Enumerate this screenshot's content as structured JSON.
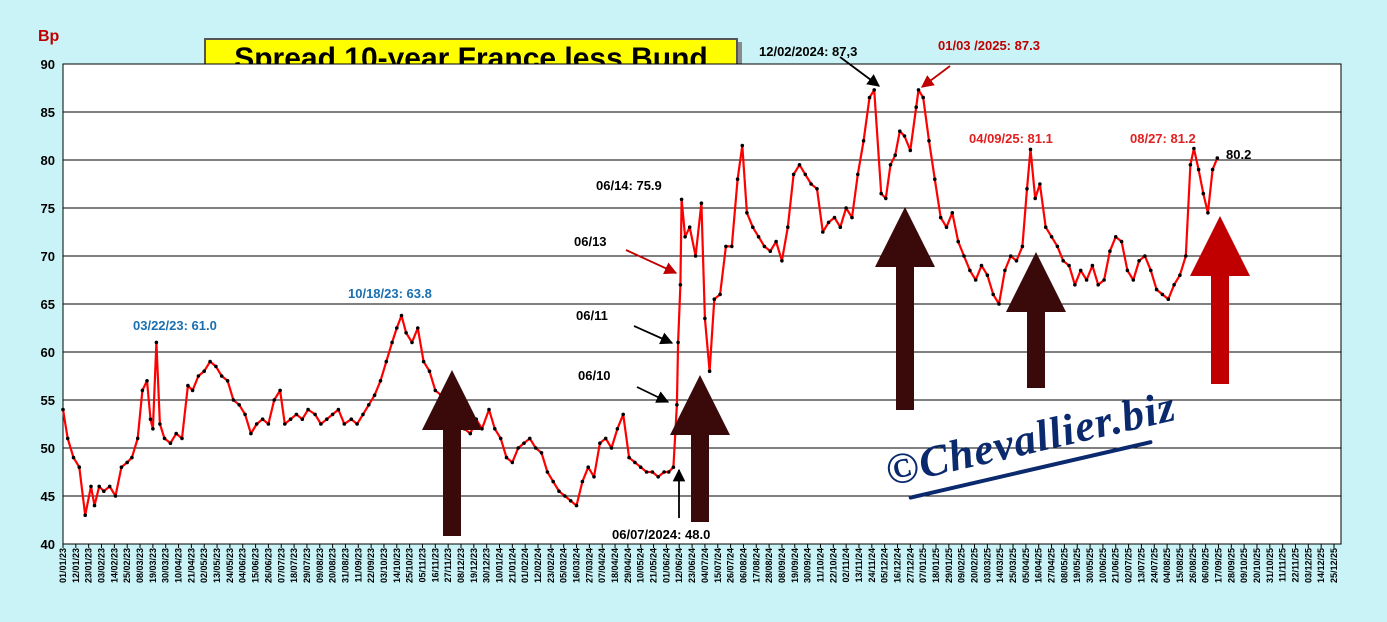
{
  "chart_data": {
    "type": "line",
    "title": "Spread 10-year France less Bund",
    "ylabel": "Bp",
    "ylim": [
      40,
      90
    ],
    "yticks": [
      40,
      45,
      50,
      55,
      60,
      65,
      70,
      75,
      80,
      85,
      90
    ],
    "xlim": [
      "2023-01-01",
      "2025-12-31"
    ],
    "grid": "horizontal",
    "line_color": "#ff0000",
    "marker_color": "#000000",
    "xticks": [
      "01/01/23",
      "12/01/23",
      "23/01/23",
      "03/02/23",
      "14/02/23",
      "25/02/23",
      "08/03/23",
      "19/03/23",
      "30/03/23",
      "10/04/23",
      "21/04/23",
      "02/05/23",
      "13/05/23",
      "24/05/23",
      "04/06/23",
      "15/06/23",
      "26/06/23",
      "07/07/23",
      "18/07/23",
      "29/07/23",
      "09/08/23",
      "20/08/23",
      "31/08/23",
      "11/09/23",
      "22/09/23",
      "03/10/23",
      "14/10/23",
      "25/10/23",
      "05/11/23",
      "16/11/23",
      "27/11/23",
      "08/12/23",
      "19/12/23",
      "30/12/23",
      "10/01/24",
      "21/01/24",
      "01/02/24",
      "12/02/24",
      "23/02/24",
      "05/03/24",
      "16/03/24",
      "27/03/24",
      "07/04/24",
      "18/04/24",
      "29/04/24",
      "10/05/24",
      "21/05/24",
      "01/06/24",
      "12/06/24",
      "23/06/24",
      "04/07/24",
      "15/07/24",
      "26/07/24",
      "06/08/24",
      "17/08/24",
      "28/08/24",
      "08/09/24",
      "19/09/24",
      "30/09/24",
      "11/10/24",
      "22/10/24",
      "02/11/24",
      "13/11/24",
      "24/11/24",
      "05/12/24",
      "16/12/24",
      "27/12/24",
      "07/01/25",
      "18/01/25",
      "29/01/25",
      "09/02/25",
      "20/02/25",
      "03/03/25",
      "14/03/25",
      "25/03/25",
      "05/04/25",
      "16/04/25",
      "27/04/25",
      "08/05/25",
      "19/05/25",
      "30/05/25",
      "10/06/25",
      "21/06/25",
      "02/07/25",
      "13/07/25",
      "24/07/25",
      "04/08/25",
      "15/08/25",
      "26/08/25",
      "06/09/25",
      "17/09/25",
      "28/09/25",
      "09/10/25",
      "20/10/25",
      "31/10/25",
      "11/11/25",
      "22/11/25",
      "03/12/25",
      "14/12/25",
      "25/12/25"
    ],
    "series": [
      {
        "x": [
          "2023-01-01",
          "2023-01-05",
          "2023-01-10",
          "2023-01-15",
          "2023-01-20",
          "2023-01-25",
          "2023-01-28",
          "2023-02-01",
          "2023-02-05",
          "2023-02-10",
          "2023-02-15",
          "2023-02-20",
          "2023-02-25",
          "2023-03-01",
          "2023-03-06",
          "2023-03-10",
          "2023-03-14",
          "2023-03-17",
          "2023-03-19",
          "2023-03-22",
          "2023-03-25",
          "2023-03-29",
          "2023-04-03",
          "2023-04-08",
          "2023-04-13",
          "2023-04-18",
          "2023-04-22",
          "2023-04-27",
          "2023-05-02",
          "2023-05-07",
          "2023-05-12",
          "2023-05-17",
          "2023-05-22",
          "2023-05-27",
          "2023-06-01",
          "2023-06-06",
          "2023-06-11",
          "2023-06-16",
          "2023-06-21",
          "2023-06-26",
          "2023-07-01",
          "2023-07-06",
          "2023-07-10",
          "2023-07-15",
          "2023-07-20",
          "2023-07-25",
          "2023-07-30",
          "2023-08-05",
          "2023-08-10",
          "2023-08-15",
          "2023-08-20",
          "2023-08-25",
          "2023-08-30",
          "2023-09-05",
          "2023-09-10",
          "2023-09-15",
          "2023-09-20",
          "2023-09-25",
          "2023-09-30",
          "2023-10-05",
          "2023-10-10",
          "2023-10-14",
          "2023-10-18",
          "2023-10-22",
          "2023-10-27",
          "2023-11-01",
          "2023-11-06",
          "2023-11-11",
          "2023-11-16",
          "2023-11-21",
          "2023-11-26",
          "2023-12-01",
          "2023-12-06",
          "2023-12-11",
          "2023-12-16",
          "2023-12-21",
          "2023-12-26",
          "2024-01-01",
          "2024-01-06",
          "2024-01-11",
          "2024-01-16",
          "2024-01-21",
          "2024-01-26",
          "2024-01-31",
          "2024-02-05",
          "2024-02-10",
          "2024-02-15",
          "2024-02-20",
          "2024-02-25",
          "2024-03-01",
          "2024-03-06",
          "2024-03-11",
          "2024-03-16",
          "2024-03-21",
          "2024-03-26",
          "2024-03-31",
          "2024-04-05",
          "2024-04-10",
          "2024-04-15",
          "2024-04-20",
          "2024-04-25",
          "2024-04-30",
          "2024-05-05",
          "2024-05-10",
          "2024-05-15",
          "2024-05-20",
          "2024-05-25",
          "2024-05-30",
          "2024-06-03",
          "2024-06-07",
          "2024-06-10",
          "2024-06-11",
          "2024-06-13",
          "2024-06-14",
          "2024-06-17",
          "2024-06-21",
          "2024-06-26",
          "2024-07-01",
          "2024-07-04",
          "2024-07-08",
          "2024-07-12",
          "2024-07-17",
          "2024-07-22",
          "2024-07-27",
          "2024-08-01",
          "2024-08-05",
          "2024-08-09",
          "2024-08-14",
          "2024-08-19",
          "2024-08-24",
          "2024-08-29",
          "2024-09-03",
          "2024-09-08",
          "2024-09-13",
          "2024-09-18",
          "2024-09-23",
          "2024-09-28",
          "2024-10-03",
          "2024-10-08",
          "2024-10-13",
          "2024-10-18",
          "2024-10-23",
          "2024-10-28",
          "2024-11-02",
          "2024-11-07",
          "2024-11-12",
          "2024-11-17",
          "2024-11-22",
          "2024-11-26",
          "2024-12-02",
          "2024-12-06",
          "2024-12-10",
          "2024-12-14",
          "2024-12-18",
          "2024-12-22",
          "2024-12-27",
          "2025-01-01",
          "2025-01-03",
          "2025-01-07",
          "2025-01-12",
          "2025-01-17",
          "2025-01-22",
          "2025-01-27",
          "2025-02-01",
          "2025-02-06",
          "2025-02-11",
          "2025-02-16",
          "2025-02-21",
          "2025-02-26",
          "2025-03-03",
          "2025-03-08",
          "2025-03-13",
          "2025-03-18",
          "2025-03-23",
          "2025-03-28",
          "2025-04-02",
          "2025-04-06",
          "2025-04-09",
          "2025-04-13",
          "2025-04-17",
          "2025-04-22",
          "2025-04-27",
          "2025-05-02",
          "2025-05-07",
          "2025-05-12",
          "2025-05-17",
          "2025-05-22",
          "2025-05-27",
          "2025-06-01",
          "2025-06-06",
          "2025-06-11",
          "2025-06-16",
          "2025-06-21",
          "2025-06-26",
          "2025-07-01",
          "2025-07-06",
          "2025-07-11",
          "2025-07-16",
          "2025-07-21",
          "2025-07-26",
          "2025-07-31",
          "2025-08-05",
          "2025-08-10",
          "2025-08-15",
          "2025-08-20",
          "2025-08-24",
          "2025-08-27",
          "2025-08-31",
          "2025-09-04",
          "2025-09-08",
          "2025-09-12",
          "2025-09-16"
        ],
        "values": [
          54.0,
          51.0,
          49.0,
          48.0,
          43.0,
          46.0,
          44.0,
          46.0,
          45.5,
          46.0,
          45.0,
          48.0,
          48.5,
          49.0,
          51.0,
          56.0,
          57.0,
          53.0,
          52.0,
          61.0,
          52.5,
          51.0,
          50.5,
          51.5,
          51.0,
          56.5,
          56.0,
          57.5,
          58.0,
          59.0,
          58.5,
          57.5,
          57.0,
          55.0,
          54.5,
          53.5,
          51.5,
          52.5,
          53.0,
          52.5,
          55.0,
          56.0,
          52.5,
          53.0,
          53.5,
          53.0,
          54.0,
          53.5,
          52.5,
          53.0,
          53.5,
          54.0,
          52.5,
          53.0,
          52.5,
          53.5,
          54.5,
          55.5,
          57.0,
          59.0,
          61.0,
          62.5,
          63.8,
          62.0,
          61.0,
          62.5,
          59.0,
          58.0,
          56.0,
          55.5,
          54.0,
          53.0,
          52.5,
          52.0,
          51.5,
          53.0,
          52.0,
          54.0,
          52.0,
          51.0,
          49.0,
          48.5,
          50.0,
          50.5,
          51.0,
          50.0,
          49.5,
          47.5,
          46.5,
          45.5,
          45.0,
          44.5,
          44.0,
          46.5,
          48.0,
          47.0,
          50.5,
          51.0,
          50.0,
          52.0,
          53.5,
          49.0,
          48.5,
          48.0,
          47.5,
          47.5,
          47.0,
          47.5,
          47.5,
          48.0,
          54.5,
          61.0,
          67.0,
          75.9,
          72.0,
          73.0,
          70.0,
          75.5,
          63.5,
          58.0,
          65.5,
          66.0,
          71.0,
          71.0,
          78.0,
          81.5,
          74.5,
          73.0,
          72.0,
          71.0,
          70.5,
          71.5,
          69.5,
          73.0,
          78.5,
          79.5,
          78.5,
          77.5,
          77.0,
          72.5,
          73.5,
          74.0,
          73.0,
          75.0,
          74.0,
          78.5,
          82.0,
          86.5,
          87.3,
          76.5,
          76.0,
          79.5,
          80.5,
          83.0,
          82.5,
          81.0,
          85.5,
          87.3,
          86.5,
          82.0,
          78.0,
          74.0,
          73.0,
          74.5,
          71.5,
          70.0,
          68.5,
          67.5,
          69.0,
          68.0,
          66.0,
          65.0,
          68.5,
          70.0,
          69.5,
          71.0,
          77.0,
          81.1,
          76.0,
          77.5,
          73.0,
          72.0,
          71.0,
          69.5,
          69.0,
          67.0,
          68.5,
          67.5,
          69.0,
          67.0,
          67.5,
          70.5,
          72.0,
          71.5,
          68.5,
          67.5,
          69.5,
          70.0,
          68.5,
          66.5,
          66.0,
          65.5,
          67.0,
          68.0,
          70.0,
          79.5,
          81.2,
          79.0,
          76.5,
          74.5,
          79.0,
          80.2
        ]
      }
    ],
    "annotations": [
      {
        "text": "03/22/23: 61.0",
        "color": "#1a6fb0"
      },
      {
        "text": "10/18/23: 63.8",
        "color": "#1a6fb0"
      },
      {
        "text": "06/07/2024: 48.0",
        "color": "#000000"
      },
      {
        "text": "06/10",
        "color": "#000000"
      },
      {
        "text": "06/11",
        "color": "#000000"
      },
      {
        "text": "06/13",
        "color": "#000000"
      },
      {
        "text": "06/14: 75.9",
        "color": "#000000"
      },
      {
        "text": "12/02/2024: 87,3",
        "color": "#000000"
      },
      {
        "text": "01/03 /2025: 87.3",
        "color": "#c00000"
      },
      {
        "text": "04/09/25: 81.1",
        "color": "#e02020"
      },
      {
        "text": "08/27: 81.2",
        "color": "#e02020"
      },
      {
        "text": "80.2",
        "color": "#000000"
      }
    ],
    "watermark": "©Chevallier.biz",
    "arrow_colors": {
      "dark": "#3a0a0a",
      "red": "#c00000"
    }
  }
}
